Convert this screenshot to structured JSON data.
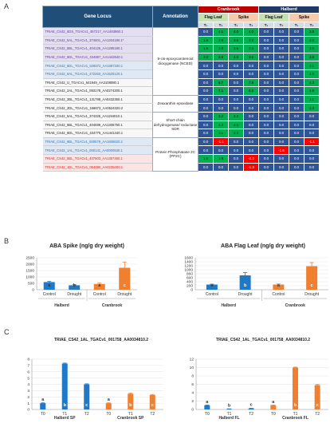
{
  "panels": {
    "a": "A",
    "b": "B",
    "c": "C"
  },
  "heatmap": {
    "headers": {
      "gene_locus": "Gene Locus",
      "annotation": "Annotation",
      "cranbrook": "Cranbrook",
      "halberd": "Halberd",
      "flag_leaf": "Flag Leaf",
      "spike": "Spike",
      "t_labels": [
        "T₁",
        "T₂",
        "T₁",
        "T₂",
        "T₁",
        "T₂",
        "T₁",
        "T₂"
      ]
    },
    "rows": [
      {
        "gene": "TRIAE_CS42_5DS_TGACv1_457217_AA1483860.1",
        "style": "purple",
        "values": [
          "0.0",
          "4.1",
          "4.0",
          "4.0",
          "0.0",
          "0.0",
          "0.0",
          "3.5"
        ]
      },
      {
        "gene": "TRIAE_CS42_5AL_TGACv1_374601_AA1204180.1*",
        "style": "purple",
        "values": [
          "1.9",
          "3.9",
          "3.6",
          "3.6",
          "0.0",
          "0.0",
          "0.0",
          "3.5"
        ]
      },
      {
        "gene": "TRIAE_CS42_5BL_TGACv1_404125_AA1285180.1",
        "style": "purple",
        "values": [
          "1.9",
          "3.8",
          "3.6",
          "3.6",
          "0.0",
          "0.0",
          "0.0",
          "3.5"
        ]
      },
      {
        "gene": "TRIAE_CS42_5DL_TGACv1_434857_AA1442640.1",
        "style": "purple",
        "values": [
          "2.0",
          "3.5",
          "4.0",
          "3.6",
          "0.0",
          "0.0",
          "0.0",
          "3.5"
        ]
      },
      {
        "gene": "TRIAE_CS42_6DL_TGACv1_526572_AA1687330.1",
        "style": "blue",
        "values": [
          "0.0",
          "0.0",
          "0.0",
          "0.0",
          "0.0",
          "0.0",
          "0.0",
          "2.1"
        ]
      },
      {
        "gene": "TRIAE_CS42_6AL_TGACv1_472263_AA1520120.1",
        "style": "blue",
        "values": [
          "0.0",
          "0.0",
          "0.0",
          "0.0",
          "0.0",
          "0.0",
          "0.0",
          "2.5"
        ]
      },
      {
        "gene": "TRIAE_CS42_U_TGACv1_641949_AA2108080.1",
        "style": "white",
        "values": [
          "0.0",
          "6.7",
          "0.0",
          "7.9",
          "0.0",
          "0.0",
          "0.0",
          "4.3"
        ]
      },
      {
        "gene": "TRIAE_CS42_2AL_TGACv1_093178_AA0274200.1",
        "style": "white",
        "values": [
          "0.0",
          "7.1",
          "0.0",
          "8.2",
          "0.0",
          "0.0",
          "0.0",
          "4.6"
        ]
      },
      {
        "gene": "TRIAE_CS42_2BL_TGACv1_131798_AA0432350.1",
        "style": "white",
        "values": [
          "0.0",
          "0.0",
          "0.0",
          "0.0",
          "0.0",
          "0.0",
          "0.0",
          "1.1"
        ]
      },
      {
        "gene": "TRIAE_CS42_2DL_TGACv1_158673_AA0524320.2",
        "style": "white",
        "values": [
          "0.0",
          "0.0",
          "0.0",
          "0.0",
          "0.0",
          "0.0",
          "0.0",
          "1.3"
        ]
      },
      {
        "gene": "TRIAE_CS42_5AL_TGACv1_374325_AA1194010.1",
        "style": "white",
        "values": [
          "0.0",
          "3.2",
          "2.2",
          "0.0",
          "0.0",
          "0.0",
          "0.0",
          "0.0"
        ]
      },
      {
        "gene": "TRIAE_CS42_5BL_TGACv1_404599_AA1305750.1",
        "style": "white",
        "values": [
          "0.0",
          "3.3",
          "2.4",
          "0.0",
          "0.0",
          "0.0",
          "0.0",
          "0.0"
        ]
      },
      {
        "gene": "TRIAE_CS42_5DL_TGACv1_434775_AA1441440.1",
        "style": "white",
        "values": [
          "0.0",
          "3.1",
          "2.3",
          "0.0",
          "0.0",
          "0.0",
          "0.0",
          "0.0"
        ]
      },
      {
        "gene": "TRIAE_CS42_6BL_TGACv1_500578_AA1606620.2",
        "style": "blue",
        "values": [
          "0.0",
          "-1.1",
          "0.0",
          "0.0",
          "0.0",
          "0.0",
          "0.0",
          "-1.1"
        ]
      },
      {
        "gene": "TRIAE_CS42_1AL_TGACv1_000141_AA0000530.1",
        "style": "blue",
        "values": [
          "0.0",
          "0.0",
          "0.0",
          "0.0",
          "0.0",
          "-1.6",
          "0.0",
          "0.0"
        ]
      },
      {
        "gene": "TRIAE_CS42_5BL_TGACv1_407503_AA1357460.1",
        "style": "red",
        "values": [
          "1.6",
          "1.9",
          "0.0",
          "-2.2",
          "0.0",
          "0.0",
          "0.0",
          "0.0"
        ]
      },
      {
        "gene": "TRIAE_CS42_1DL_TGACv1_064695_AA0235400.1",
        "style": "red",
        "values": [
          "0.0",
          "0.0",
          "0.0",
          "-1.3",
          "0.0",
          "0.0",
          "0.0",
          "0.0"
        ]
      }
    ],
    "annotations": [
      {
        "label": "9-cis-epoxycarotenoid dioxygenase (NCED)",
        "rows": 8
      },
      {
        "label": "Zeaxanthin epoxidase",
        "rows": 2
      },
      {
        "label": "Short-chain dehydrogenase/ reductase SDR",
        "rows": 3
      },
      {
        "label": "Protein Phosphatase 2C (PP2C)",
        "rows": 4
      }
    ]
  },
  "colors": {
    "blue": "#1f78c8",
    "orange": "#f08030",
    "up": "#00b050",
    "down": "#ff0000",
    "zero": "#2f5597"
  },
  "chart_data": [
    {
      "type": "bar",
      "title": "ABA Spike (ng/g dry weight)",
      "categories": [
        "Control",
        "Drought",
        "Control",
        "Drought"
      ],
      "groups": [
        "Halberd",
        "Cranbrook"
      ],
      "values": [
        600,
        350,
        450,
        1720
      ],
      "errors": [
        60,
        40,
        70,
        450
      ],
      "letters": [
        "a",
        "b",
        "a",
        "c"
      ],
      "ylim": [
        0,
        2500
      ],
      "yticks": [
        0,
        500,
        1000,
        1500,
        2000,
        2500
      ]
    },
    {
      "type": "bar",
      "title": "ABA Flag Leaf (ng/g dry weight)",
      "categories": [
        "Control",
        "Drought",
        "Control",
        "Drought"
      ],
      "groups": [
        "Halberd",
        "Cranbrook"
      ],
      "values": [
        260,
        720,
        260,
        1180
      ],
      "errors": [
        20,
        140,
        30,
        180
      ],
      "letters": [
        "a",
        "b",
        "a",
        "c"
      ],
      "ylim": [
        0,
        1600
      ],
      "yticks": [
        0,
        200,
        400,
        600,
        800,
        1000,
        1200,
        1400,
        1600
      ]
    },
    {
      "type": "bar",
      "title": "TRIAE_CS42_1AL_TGACv1_001758_AA0034810.2",
      "categories": [
        "T0",
        "T1",
        "T2",
        "T0",
        "T1",
        "T2"
      ],
      "groups": [
        "Halberd SP",
        "Cranbrook SP"
      ],
      "values": [
        1.0,
        7.3,
        4.0,
        1.0,
        2.5,
        2.3
      ],
      "errors": [
        0.05,
        0.08,
        0.08,
        0.05,
        0.08,
        0.08
      ],
      "letters": [
        "a",
        "b",
        "c",
        "a",
        "b",
        "c"
      ],
      "ylim": [
        0,
        8
      ],
      "yticks": [
        0,
        1,
        2,
        3,
        4,
        5,
        6,
        7,
        8
      ]
    },
    {
      "type": "bar",
      "title": "TRIAE_CS42_1AL_TGACv1_001758_AA0034810.2",
      "categories": [
        "T0",
        "T1",
        "T2",
        "T0",
        "T1",
        "T2"
      ],
      "groups": [
        "Halberd FL",
        "Cranbrook FL"
      ],
      "values": [
        1.0,
        0.12,
        0.25,
        1.0,
        10.0,
        5.8
      ],
      "errors": [
        0.05,
        0.03,
        0.03,
        0.05,
        0.1,
        0.15
      ],
      "letters": [
        "a",
        "b",
        "c",
        "a",
        "b",
        "c"
      ],
      "ylim": [
        0,
        12
      ],
      "yticks": [
        0,
        2,
        4,
        6,
        8,
        10,
        12
      ]
    }
  ]
}
